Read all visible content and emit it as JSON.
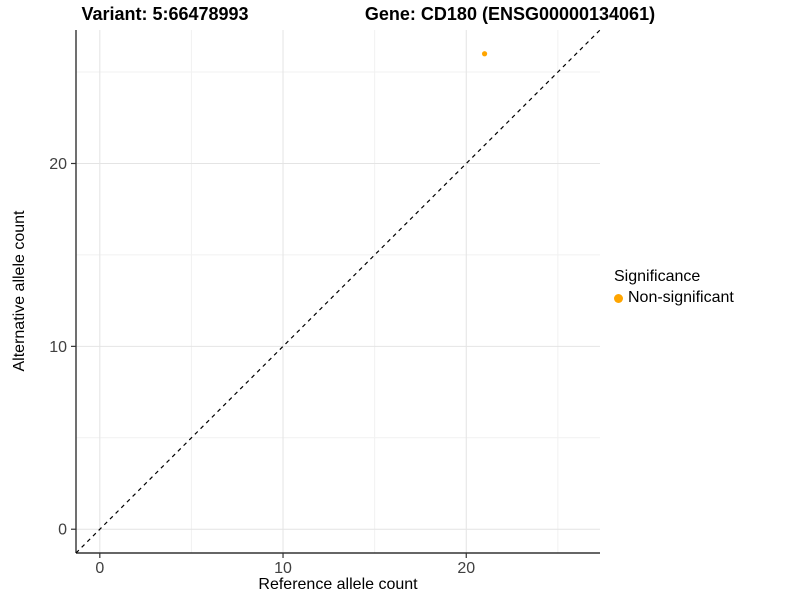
{
  "chart_data": {
    "type": "scatter",
    "title_variant": "Variant: 5:66478993",
    "title_gene": "Gene: CD180 (ENSG00000134061)",
    "xlabel": "Reference allele count",
    "ylabel": "Alternative allele count",
    "xlim": [
      -1.3,
      27.3
    ],
    "ylim": [
      -1.3,
      27.3
    ],
    "x_major_ticks": [
      0,
      10,
      20
    ],
    "y_major_ticks": [
      0,
      10,
      20
    ],
    "x_minor_ticks": [
      5,
      15,
      25
    ],
    "y_minor_ticks": [
      5,
      15,
      25
    ],
    "grid": "major+minor",
    "identity_line": {
      "style": "dashed",
      "color": "#000000",
      "from": -1.3,
      "to": 27.3
    },
    "series": [
      {
        "name": "Non-significant",
        "color": "#FFA500",
        "points": [
          {
            "x": 21,
            "y": 26
          }
        ]
      }
    ],
    "legend": {
      "title": "Significance",
      "position": "right",
      "entries": [
        {
          "label": "Non-significant",
          "color": "#FFA500"
        }
      ]
    }
  },
  "colors": {
    "background": "#ffffff",
    "grid_major": "#e4e4e4",
    "grid_minor": "#f1f1f1",
    "axis_line": "#333333",
    "tick_text": "#404040",
    "point": "#FFA500"
  }
}
